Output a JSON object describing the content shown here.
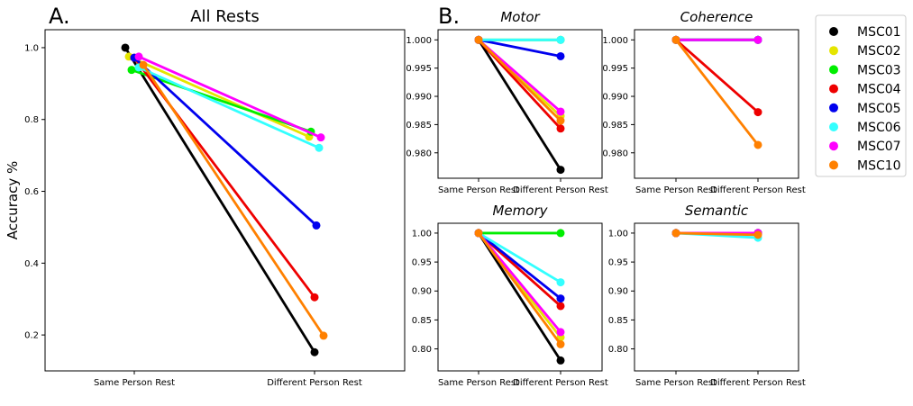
{
  "panel_letters": {
    "a": "A.",
    "b": "B."
  },
  "legend": {
    "entries": [
      {
        "name": "MSC01",
        "color": "#000000"
      },
      {
        "name": "MSC02",
        "color": "#e5e500"
      },
      {
        "name": "MSC03",
        "color": "#00ee00"
      },
      {
        "name": "MSC04",
        "color": "#ee0000"
      },
      {
        "name": "MSC05",
        "color": "#0000ee"
      },
      {
        "name": "MSC06",
        "color": "#33ffff"
      },
      {
        "name": "MSC07",
        "color": "#ff00ff"
      },
      {
        "name": "MSC10",
        "color": "#ff8000"
      }
    ]
  },
  "chart_data": [
    {
      "id": "all-rests",
      "type": "line",
      "title": "All Rests",
      "title_style": "normal",
      "ylabel": "Accuracy %",
      "categories": [
        "Same Person Rest",
        "Different Person Rest"
      ],
      "ylim": [
        0.1,
        1.05
      ],
      "yticks": [
        0.2,
        0.4,
        0.6,
        0.8,
        1.0
      ],
      "ytick_labels": [
        "0.2",
        "0.4",
        "0.6",
        "0.8",
        "1.0"
      ],
      "series": [
        {
          "name": "MSC01",
          "values": [
            1.0,
            0.152
          ],
          "offsets": [
            -0.05,
            0.0
          ]
        },
        {
          "name": "MSC02",
          "values": [
            0.975,
            0.752
          ],
          "offsets": [
            -0.03,
            -0.03
          ]
        },
        {
          "name": "MSC03",
          "values": [
            0.938,
            0.766
          ],
          "offsets": [
            -0.015,
            -0.02
          ]
        },
        {
          "name": "MSC04",
          "values": [
            0.972,
            0.305
          ],
          "offsets": [
            0.0,
            0.0
          ]
        },
        {
          "name": "MSC05",
          "values": [
            0.972,
            0.505
          ],
          "offsets": [
            0.0,
            0.01
          ]
        },
        {
          "name": "MSC06",
          "values": [
            0.945,
            0.721
          ],
          "offsets": [
            0.025,
            0.025
          ]
        },
        {
          "name": "MSC07",
          "values": [
            0.975,
            0.75
          ],
          "offsets": [
            0.025,
            0.035
          ]
        },
        {
          "name": "MSC10",
          "values": [
            0.952,
            0.198
          ],
          "offsets": [
            0.05,
            0.05
          ]
        }
      ]
    },
    {
      "id": "motor",
      "type": "line",
      "title": "Motor",
      "title_style": "italic",
      "categories": [
        "Same Person Rest",
        "Different Person Rest"
      ],
      "ylim": [
        0.9755,
        1.0018
      ],
      "yticks": [
        0.98,
        0.985,
        0.99,
        0.995,
        1.0
      ],
      "ytick_labels": [
        "0.980",
        "0.985",
        "0.990",
        "0.995",
        "1.000"
      ],
      "series": [
        {
          "name": "MSC01",
          "values": [
            1.0,
            0.977
          ]
        },
        {
          "name": "MSC02",
          "values": [
            1.0,
            0.9865
          ]
        },
        {
          "name": "MSC03",
          "values": [
            1.0,
            1.0
          ]
        },
        {
          "name": "MSC04",
          "values": [
            1.0,
            0.9843
          ]
        },
        {
          "name": "MSC05",
          "values": [
            1.0,
            0.9971
          ]
        },
        {
          "name": "MSC06",
          "values": [
            1.0,
            1.0
          ]
        },
        {
          "name": "MSC07",
          "values": [
            1.0,
            0.9873
          ]
        },
        {
          "name": "MSC10",
          "values": [
            1.0,
            0.9857
          ]
        }
      ]
    },
    {
      "id": "coherence",
      "type": "line",
      "title": "Coherence",
      "title_style": "italic",
      "categories": [
        "Same Person Rest",
        "Different Person Rest"
      ],
      "ylim": [
        0.9755,
        1.0018
      ],
      "yticks": [
        0.98,
        0.985,
        0.99,
        0.995,
        1.0
      ],
      "ytick_labels": [
        "0.980",
        "0.985",
        "0.990",
        "0.995",
        "1.000"
      ],
      "series": [
        {
          "name": "MSC01",
          "values": [
            1.0,
            1.0
          ]
        },
        {
          "name": "MSC02",
          "values": [
            1.0,
            1.0
          ]
        },
        {
          "name": "MSC03",
          "values": [
            1.0,
            1.0
          ]
        },
        {
          "name": "MSC04",
          "values": [
            1.0,
            0.9872
          ]
        },
        {
          "name": "MSC05",
          "values": [
            1.0,
            1.0
          ]
        },
        {
          "name": "MSC06",
          "values": [
            1.0,
            1.0
          ]
        },
        {
          "name": "MSC07",
          "values": [
            1.0,
            1.0
          ]
        },
        {
          "name": "MSC10",
          "values": [
            1.0,
            0.9814
          ]
        }
      ]
    },
    {
      "id": "memory",
      "type": "line",
      "title": "Memory",
      "title_style": "italic",
      "categories": [
        "Same Person Rest",
        "Different Person Rest"
      ],
      "ylim": [
        0.762,
        1.017
      ],
      "yticks": [
        0.8,
        0.85,
        0.9,
        0.95,
        1.0
      ],
      "ytick_labels": [
        "0.80",
        "0.85",
        "0.90",
        "0.95",
        "1.00"
      ],
      "series": [
        {
          "name": "MSC01",
          "values": [
            1.0,
            0.78
          ]
        },
        {
          "name": "MSC02",
          "values": [
            1.0,
            0.82
          ]
        },
        {
          "name": "MSC03",
          "values": [
            1.0,
            1.0
          ]
        },
        {
          "name": "MSC04",
          "values": [
            1.0,
            0.874
          ]
        },
        {
          "name": "MSC05",
          "values": [
            1.0,
            0.887
          ]
        },
        {
          "name": "MSC06",
          "values": [
            1.0,
            0.915
          ]
        },
        {
          "name": "MSC07",
          "values": [
            1.0,
            0.829
          ]
        },
        {
          "name": "MSC10",
          "values": [
            1.0,
            0.808
          ]
        }
      ]
    },
    {
      "id": "semantic",
      "type": "line",
      "title": "Semantic",
      "title_style": "italic",
      "categories": [
        "Same Person Rest",
        "Different Person Rest"
      ],
      "ylim": [
        0.762,
        1.017
      ],
      "yticks": [
        0.8,
        0.85,
        0.9,
        0.95,
        1.0
      ],
      "ytick_labels": [
        "0.80",
        "0.85",
        "0.90",
        "0.95",
        "1.00"
      ],
      "series": [
        {
          "name": "MSC01",
          "values": [
            1.0,
            1.0
          ]
        },
        {
          "name": "MSC02",
          "values": [
            1.0,
            1.0
          ]
        },
        {
          "name": "MSC03",
          "values": [
            1.0,
            1.0
          ]
        },
        {
          "name": "MSC04",
          "values": [
            1.0,
            1.0
          ]
        },
        {
          "name": "MSC05",
          "values": [
            1.0,
            1.0
          ]
        },
        {
          "name": "MSC06",
          "values": [
            1.0,
            0.992
          ]
        },
        {
          "name": "MSC07",
          "values": [
            1.0,
            1.0
          ]
        },
        {
          "name": "MSC10",
          "values": [
            1.0,
            0.997
          ]
        }
      ]
    }
  ]
}
